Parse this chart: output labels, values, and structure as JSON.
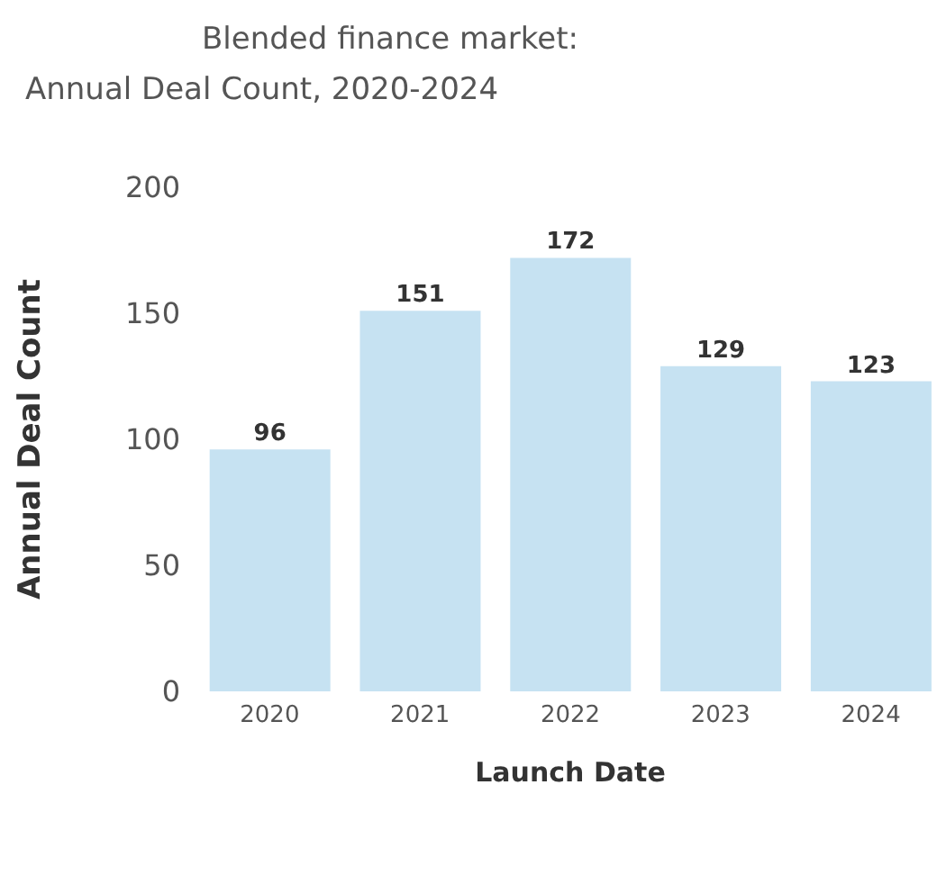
{
  "chart_data": {
    "type": "bar",
    "title": "Blended finance market:",
    "subtitle": "Annual Deal Count, 2020-2024",
    "xlabel": "Launch Date",
    "ylabel": "Annual Deal Count",
    "categories": [
      "2020",
      "2021",
      "2022",
      "2023",
      "2024"
    ],
    "values": [
      96,
      151,
      172,
      129,
      123
    ],
    "color": "#c6e2f2",
    "ylim": [
      0,
      200
    ],
    "yticks": [
      0,
      50,
      100,
      150,
      200
    ],
    "data_labels": true
  }
}
